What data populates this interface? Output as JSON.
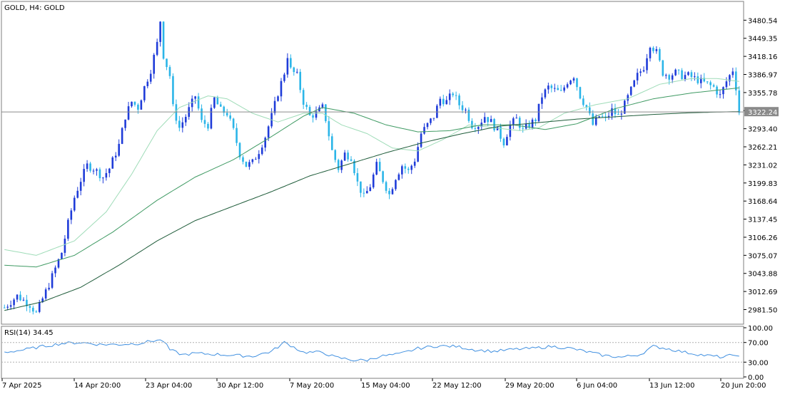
{
  "chart_data": [
    {
      "type": "candlestick",
      "title": "GOLD, H4:  GOLD",
      "symbol": "GOLD",
      "timeframe": "H4",
      "y_ticks": [
        "3480.54",
        "3449.35",
        "3418.16",
        "3386.97",
        "3355.78",
        "3324.59",
        "3293.40",
        "3262.21",
        "3231.02",
        "3199.83",
        "3168.64",
        "3137.45",
        "3106.26",
        "3075.07",
        "3043.88",
        "3012.69",
        "2981.50"
      ],
      "ylim": [
        2960,
        3508
      ],
      "x_ticks": [
        "7 Apr 2025",
        "14 Apr 20:00",
        "23 Apr 04:00",
        "30 Apr 12:00",
        "7 May 20:00",
        "15 May 04:00",
        "22 May 12:00",
        "29 May 20:00",
        "6 Jun 04:00",
        "13 Jun 12:00",
        "20 Jun 20:00"
      ],
      "current_price": "3322.24",
      "colors": {
        "up": "#1f3cd9",
        "down": "#2bb5e8",
        "price_line": "#8a8a8a",
        "ma_fast": "#9fdcb8",
        "ma_mid": "#3f9a63",
        "ma_slow": "#1f5c3a"
      },
      "close_path": [
        [
          0,
          2985
        ],
        [
          4,
          3005
        ],
        [
          8,
          2990
        ],
        [
          10,
          2975
        ],
        [
          14,
          3025
        ],
        [
          18,
          3080
        ],
        [
          20,
          3130
        ],
        [
          22,
          3175
        ],
        [
          24,
          3205
        ],
        [
          26,
          3230
        ],
        [
          28,
          3225
        ],
        [
          31,
          3210
        ],
        [
          33,
          3225
        ],
        [
          36,
          3265
        ],
        [
          38,
          3315
        ],
        [
          40,
          3340
        ],
        [
          42,
          3330
        ],
        [
          44,
          3365
        ],
        [
          46,
          3395
        ],
        [
          48,
          3440
        ],
        [
          49,
          3480
        ],
        [
          50,
          3420
        ],
        [
          52,
          3385
        ],
        [
          53,
          3330
        ],
        [
          55,
          3295
        ],
        [
          57,
          3315
        ],
        [
          60,
          3350
        ],
        [
          62,
          3305
        ],
        [
          64,
          3300
        ],
        [
          66,
          3345
        ],
        [
          68,
          3325
        ],
        [
          70,
          3320
        ],
        [
          72,
          3290
        ],
        [
          74,
          3250
        ],
        [
          76,
          3230
        ],
        [
          78,
          3235
        ],
        [
          80,
          3255
        ],
        [
          82,
          3280
        ],
        [
          84,
          3315
        ],
        [
          86,
          3355
        ],
        [
          88,
          3390
        ],
        [
          89,
          3420
        ],
        [
          90,
          3395
        ],
        [
          92,
          3385
        ],
        [
          94,
          3340
        ],
        [
          96,
          3315
        ],
        [
          98,
          3320
        ],
        [
          100,
          3330
        ],
        [
          101,
          3310
        ],
        [
          103,
          3255
        ],
        [
          105,
          3225
        ],
        [
          107,
          3250
        ],
        [
          109,
          3245
        ],
        [
          111,
          3200
        ],
        [
          113,
          3175
        ],
        [
          115,
          3195
        ],
        [
          117,
          3230
        ],
        [
          119,
          3205
        ],
        [
          121,
          3180
        ],
        [
          123,
          3210
        ],
        [
          125,
          3230
        ],
        [
          127,
          3220
        ],
        [
          129,
          3240
        ],
        [
          131,
          3285
        ],
        [
          133,
          3300
        ],
        [
          135,
          3315
        ],
        [
          137,
          3345
        ],
        [
          139,
          3340
        ],
        [
          141,
          3355
        ],
        [
          143,
          3335
        ],
        [
          145,
          3325
        ],
        [
          147,
          3300
        ],
        [
          149,
          3300
        ],
        [
          151,
          3315
        ],
        [
          153,
          3305
        ],
        [
          155,
          3290
        ],
        [
          157,
          3270
        ],
        [
          159,
          3300
        ],
        [
          161,
          3310
        ],
        [
          163,
          3290
        ],
        [
          165,
          3300
        ],
        [
          167,
          3310
        ],
        [
          169,
          3350
        ],
        [
          171,
          3365
        ],
        [
          173,
          3360
        ],
        [
          175,
          3355
        ],
        [
          177,
          3375
        ],
        [
          179,
          3385
        ],
        [
          181,
          3350
        ],
        [
          183,
          3330
        ],
        [
          185,
          3300
        ],
        [
          187,
          3315
        ],
        [
          189,
          3310
        ],
        [
          191,
          3325
        ],
        [
          193,
          3315
        ],
        [
          195,
          3335
        ],
        [
          197,
          3360
        ],
        [
          199,
          3385
        ],
        [
          201,
          3400
        ],
        [
          203,
          3440
        ],
        [
          205,
          3425
        ],
        [
          207,
          3390
        ],
        [
          209,
          3385
        ],
        [
          211,
          3390
        ],
        [
          213,
          3385
        ],
        [
          215,
          3385
        ],
        [
          217,
          3380
        ],
        [
          219,
          3375
        ],
        [
          221,
          3370
        ],
        [
          223,
          3365
        ],
        [
          225,
          3350
        ],
        [
          227,
          3375
        ],
        [
          229,
          3395
        ],
        [
          230,
          3365
        ],
        [
          231,
          3322
        ]
      ],
      "ma_fast_path": [
        [
          0,
          3085
        ],
        [
          10,
          3075
        ],
        [
          22,
          3100
        ],
        [
          32,
          3150
        ],
        [
          40,
          3215
        ],
        [
          48,
          3290
        ],
        [
          55,
          3330
        ],
        [
          64,
          3350
        ],
        [
          70,
          3345
        ],
        [
          78,
          3320
        ],
        [
          86,
          3305
        ],
        [
          94,
          3320
        ],
        [
          100,
          3320
        ],
        [
          106,
          3300
        ],
        [
          114,
          3285
        ],
        [
          122,
          3260
        ],
        [
          130,
          3255
        ],
        [
          138,
          3275
        ],
        [
          146,
          3300
        ],
        [
          154,
          3295
        ],
        [
          162,
          3290
        ],
        [
          168,
          3295
        ],
        [
          176,
          3320
        ],
        [
          186,
          3335
        ],
        [
          196,
          3345
        ],
        [
          206,
          3370
        ],
        [
          216,
          3380
        ],
        [
          224,
          3380
        ],
        [
          231,
          3375
        ]
      ],
      "ma_mid_path": [
        [
          0,
          3058
        ],
        [
          10,
          3055
        ],
        [
          22,
          3075
        ],
        [
          34,
          3115
        ],
        [
          48,
          3170
        ],
        [
          60,
          3210
        ],
        [
          72,
          3240
        ],
        [
          84,
          3280
        ],
        [
          94,
          3315
        ],
        [
          100,
          3330
        ],
        [
          110,
          3320
        ],
        [
          120,
          3300
        ],
        [
          130,
          3288
        ],
        [
          140,
          3290
        ],
        [
          150,
          3300
        ],
        [
          160,
          3300
        ],
        [
          170,
          3292
        ],
        [
          180,
          3302
        ],
        [
          192,
          3328
        ],
        [
          204,
          3345
        ],
        [
          216,
          3355
        ],
        [
          231,
          3364
        ]
      ],
      "ma_slow_path": [
        [
          0,
          2980
        ],
        [
          12,
          2995
        ],
        [
          24,
          3020
        ],
        [
          36,
          3058
        ],
        [
          48,
          3100
        ],
        [
          60,
          3135
        ],
        [
          72,
          3160
        ],
        [
          84,
          3185
        ],
        [
          96,
          3212
        ],
        [
          108,
          3232
        ],
        [
          120,
          3252
        ],
        [
          132,
          3270
        ],
        [
          144,
          3285
        ],
        [
          156,
          3298
        ],
        [
          168,
          3304
        ],
        [
          180,
          3310
        ],
        [
          192,
          3314
        ],
        [
          204,
          3318
        ],
        [
          216,
          3321
        ],
        [
          231,
          3323
        ]
      ],
      "candle_count": 232
    },
    {
      "type": "line",
      "title": "RSI(14) 34.45",
      "indicator": "RSI(14)",
      "current_value": "34.45",
      "y_ticks": [
        "100.00",
        "70.00",
        "30.00",
        "0.00"
      ],
      "ylim": [
        0,
        100
      ],
      "levels": [
        30,
        70
      ],
      "color": "#3f8fe0",
      "values_path": [
        [
          0,
          50
        ],
        [
          6,
          55
        ],
        [
          12,
          62
        ],
        [
          18,
          68
        ],
        [
          24,
          70
        ],
        [
          30,
          66
        ],
        [
          36,
          66
        ],
        [
          42,
          68
        ],
        [
          48,
          75
        ],
        [
          50,
          73
        ],
        [
          52,
          55
        ],
        [
          56,
          45
        ],
        [
          60,
          48
        ],
        [
          66,
          46
        ],
        [
          72,
          44
        ],
        [
          78,
          42
        ],
        [
          84,
          52
        ],
        [
          88,
          70
        ],
        [
          90,
          64
        ],
        [
          94,
          50
        ],
        [
          100,
          50
        ],
        [
          104,
          40
        ],
        [
          110,
          34
        ],
        [
          114,
          34
        ],
        [
          118,
          42
        ],
        [
          124,
          46
        ],
        [
          130,
          58
        ],
        [
          136,
          63
        ],
        [
          142,
          62
        ],
        [
          148,
          55
        ],
        [
          154,
          52
        ],
        [
          160,
          56
        ],
        [
          166,
          58
        ],
        [
          172,
          62
        ],
        [
          178,
          58
        ],
        [
          184,
          50
        ],
        [
          188,
          44
        ],
        [
          194,
          40
        ],
        [
          200,
          46
        ],
        [
          204,
          62
        ],
        [
          208,
          58
        ],
        [
          214,
          50
        ],
        [
          220,
          44
        ],
        [
          226,
          40
        ],
        [
          230,
          46
        ],
        [
          232,
          34
        ]
      ]
    }
  ]
}
